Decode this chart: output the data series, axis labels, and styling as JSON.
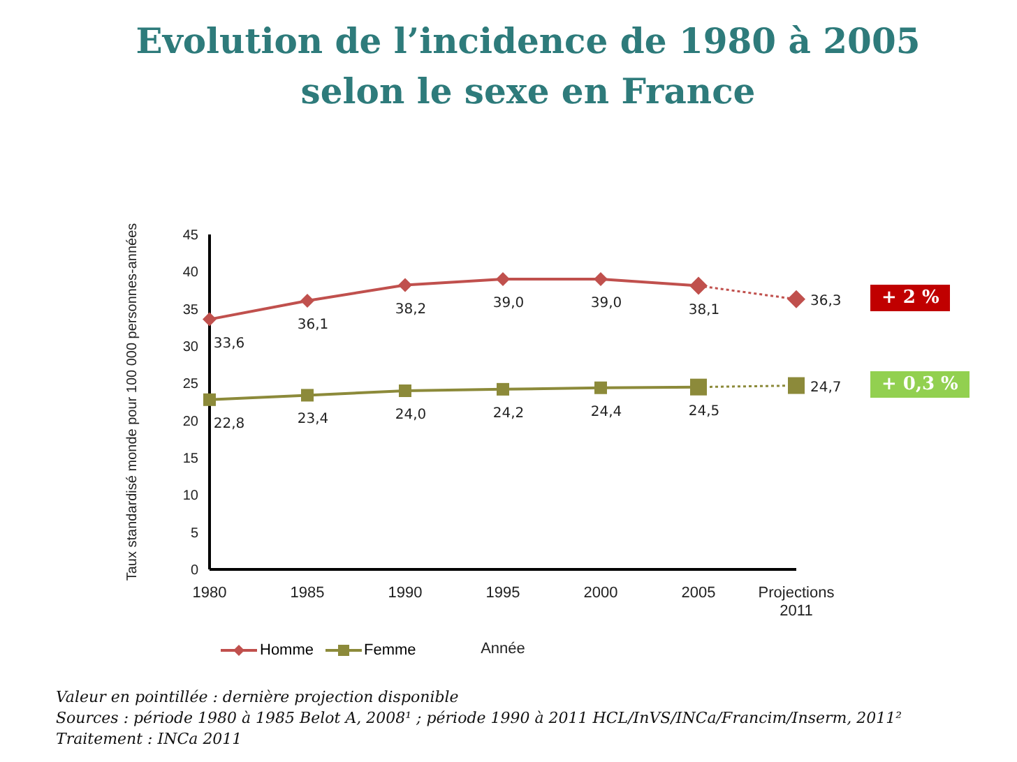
{
  "chart_data": {
    "type": "line",
    "title": "Evolution de l’incidence de 1980 à 2005 selon le sexe en France",
    "xlabel": "Année",
    "ylabel": "Taux standardisé monde pour 100 000 personnes-années",
    "categories": [
      "1980",
      "1985",
      "1990",
      "1995",
      "2000",
      "2005",
      "Projections 2011"
    ],
    "ylim": [
      0,
      45
    ],
    "yticks": [
      0,
      5,
      10,
      15,
      20,
      25,
      30,
      35,
      40,
      45
    ],
    "grid": false,
    "legend": "bottom left",
    "series": [
      {
        "name": "Homme",
        "color": "#c0504d",
        "marker": "diamond",
        "line_style": "solid",
        "values": [
          33.6,
          36.1,
          38.2,
          39.0,
          39.0,
          38.1,
          null
        ],
        "value_labels": [
          "33,6",
          "36,1",
          "38,2",
          "39,0",
          "39,0",
          "38,1",
          null
        ]
      },
      {
        "color": "#c0504d",
        "marker": "diamond",
        "line_style": "dotted",
        "values": [
          null,
          null,
          null,
          null,
          null,
          38.1,
          36.3
        ],
        "value_labels": [
          null,
          null,
          null,
          null,
          null,
          null,
          "36,3"
        ]
      },
      {
        "name": "Femme",
        "color": "#8c8a3a",
        "marker": "square",
        "line_style": "solid",
        "values": [
          22.8,
          23.4,
          24.0,
          24.2,
          24.4,
          24.5,
          null
        ],
        "value_labels": [
          "22,8",
          "23,4",
          "24,0",
          "24,2",
          "24,4",
          "24,5",
          null
        ]
      },
      {
        "color": "#8c8a3a",
        "marker": "square",
        "line_style": "dotted",
        "values": [
          null,
          null,
          null,
          null,
          null,
          24.5,
          24.7
        ],
        "value_labels": [
          null,
          null,
          null,
          null,
          null,
          null,
          "24,7"
        ]
      }
    ],
    "annotations": [
      "+ 2 %",
      "+ 0,3 %",
      "Valeur en pointillée : dernière projection disponible",
      "Sources : période 1980 à 1985 Belot A, 2008¹ ; période 1990 à 2011 HCL/InVS/INCa/Francim/Inserm, 2011²",
      "Traitement : INCa 2011"
    ]
  }
}
